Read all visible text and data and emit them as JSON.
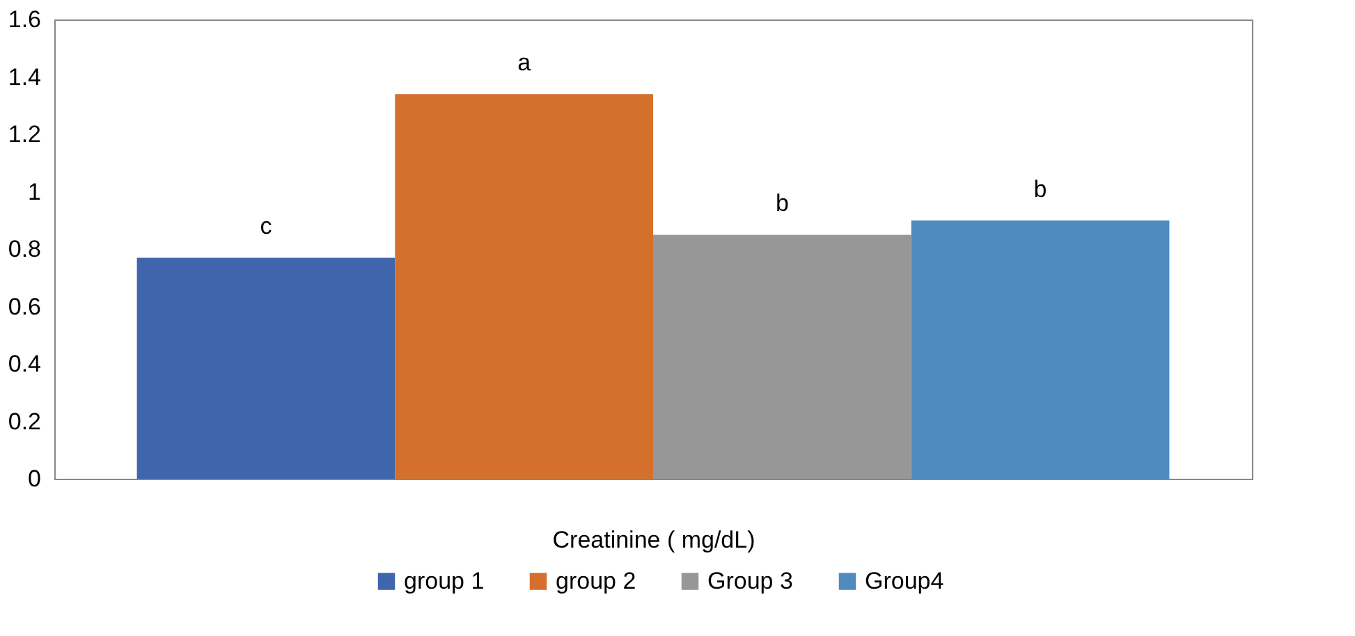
{
  "chart_data": {
    "type": "bar",
    "categories": [
      null
    ],
    "xlabel": "Creatinine ( mg/dL)",
    "series": [
      {
        "name": "group 1",
        "color": "#3f65ad",
        "values": [
          0.77
        ],
        "value_labels": [
          "c"
        ]
      },
      {
        "name": "group 2",
        "color": "#d4702b",
        "values": [
          1.34
        ],
        "value_labels": [
          "a"
        ]
      },
      {
        "name": "Group 3",
        "color": "#979797",
        "values": [
          0.85
        ],
        "value_labels": [
          "b"
        ]
      },
      {
        "name": "Group4",
        "color": "#4f8bbf",
        "values": [
          0.9
        ],
        "value_labels": [
          "b"
        ]
      }
    ],
    "ylim": [
      0,
      1.6
    ],
    "yticks": [
      0,
      0.2,
      0.4,
      0.6,
      0.8,
      1,
      1.2,
      1.4,
      1.6
    ],
    "grid": false,
    "legend": "bottom"
  }
}
